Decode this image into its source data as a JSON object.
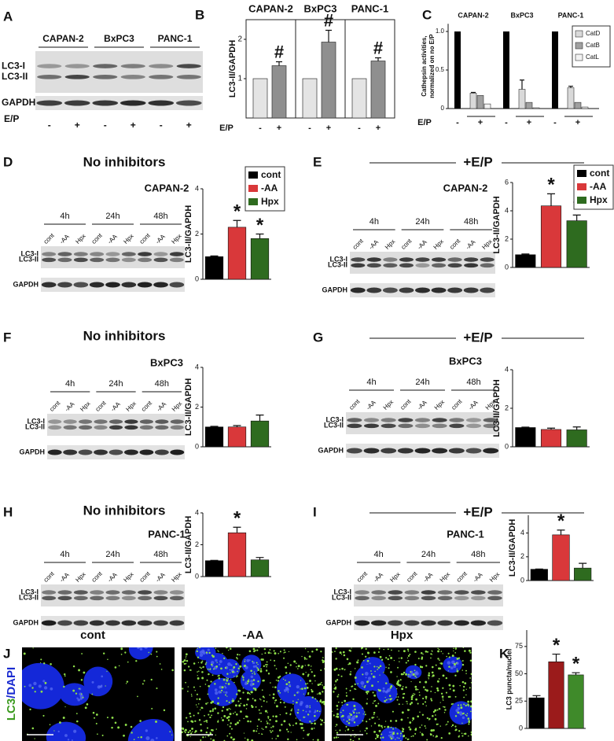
{
  "blots": [
    {
      "panel": "A",
      "groups": [
        "CAPAN-2",
        "BxPC3",
        "PANC-1"
      ],
      "treatment": "E/P",
      "lanes": [
        "-",
        "+",
        "-",
        "+",
        "-",
        "+"
      ],
      "markers": [
        "LC3-I",
        "LC3-II",
        "GAPDH"
      ]
    },
    {
      "panel": "D",
      "condition": "No inhibitors",
      "cell_line": "CAPAN-2",
      "groups": [
        "4h",
        "24h",
        "48h"
      ],
      "lanes": [
        "cont",
        "-AA",
        "Hpx",
        "cont",
        "-AA",
        "Hpx",
        "cont",
        "-AA",
        "Hpx"
      ],
      "markers": [
        "LC3-I",
        "LC3-II",
        "GAPDH"
      ]
    },
    {
      "panel": "E",
      "condition": "+E/P",
      "cell_line": "CAPAN-2",
      "groups": [
        "4h",
        "24h",
        "48h"
      ],
      "lanes": [
        "cont",
        "-AA",
        "Hpx",
        "cont",
        "-AA",
        "Hpx",
        "cont",
        "-AA",
        "Hpx"
      ],
      "markers": [
        "LC3-I",
        "LC3-II",
        "GAPDH"
      ]
    },
    {
      "panel": "F",
      "condition": "No inhibitors",
      "cell_line": "BxPC3",
      "groups": [
        "4h",
        "24h",
        "48h"
      ],
      "lanes": [
        "cont",
        "-AA",
        "Hpx",
        "cont",
        "-AA",
        "Hpx",
        "cont",
        "-AA",
        "Hpx"
      ],
      "markers": [
        "LC3-I",
        "LC3-II",
        "GAPDH"
      ]
    },
    {
      "panel": "G",
      "condition": "+E/P",
      "cell_line": "BxPC3",
      "groups": [
        "4h",
        "24h",
        "48h"
      ],
      "lanes": [
        "cont",
        "-AA",
        "Hpx",
        "cont",
        "-AA",
        "Hpx",
        "cont",
        "-AA",
        "Hpx"
      ],
      "markers": [
        "LC3-I",
        "LC3-II",
        "GAPDH"
      ]
    },
    {
      "panel": "H",
      "condition": "No inhibitors",
      "cell_line": "PANC-1",
      "groups": [
        "4h",
        "24h",
        "48h"
      ],
      "lanes": [
        "cont",
        "-AA",
        "Hpx",
        "cont",
        "-AA",
        "Hpx",
        "cont",
        "-AA",
        "Hpx"
      ],
      "markers": [
        "LC3-I",
        "LC3-II",
        "GAPDH"
      ]
    },
    {
      "panel": "I",
      "condition": "+E/P",
      "cell_line": "PANC-1",
      "groups": [
        "4h",
        "24h",
        "48h"
      ],
      "lanes": [
        "cont",
        "-AA",
        "Hpx",
        "cont",
        "-AA",
        "Hpx",
        "cont",
        "-AA",
        "Hpx"
      ],
      "markers": [
        "LC3-I",
        "LC3-II",
        "GAPDH"
      ]
    }
  ],
  "chart_data": [
    {
      "type": "bar",
      "panel": "B",
      "groups": [
        "CAPAN-2",
        "BxPC3",
        "PANC-1"
      ],
      "categories": [
        "-",
        "+",
        "-",
        "+",
        "-",
        "+"
      ],
      "x_label": "E/P",
      "y_label": "LC3-II/GAPDH",
      "values": [
        1,
        1.33,
        1,
        1.93,
        1,
        1.45
      ],
      "errors": [
        null,
        0.1,
        null,
        0.3,
        null,
        0.08
      ],
      "value_annotations": [
        null,
        "#",
        null,
        "#",
        null,
        "#"
      ],
      "colors": [
        "#e4e4e4",
        "#8f8f8f",
        "#e4e4e4",
        "#8f8f8f",
        "#e4e4e4",
        "#8f8f8f"
      ],
      "ylim": [
        0,
        2.5
      ],
      "yticks": [
        1,
        2
      ]
    },
    {
      "type": "grouped-bar",
      "panel": "C",
      "groups": [
        "CAPAN-2",
        "BxPC3",
        "PANC-1"
      ],
      "categories": [
        "-",
        "+",
        "-",
        "+",
        "-",
        "+"
      ],
      "x_label": "E/P",
      "y_label": [
        "Cathepsin activities,",
        "normalized on no E/P"
      ],
      "reference": {
        "color": "#000000",
        "values": [
          1,
          null,
          1,
          null,
          1,
          null
        ]
      },
      "series": [
        {
          "name": "CatD",
          "color": "#d9d9d9",
          "values": [
            null,
            0.2,
            null,
            0.25,
            null,
            0.27
          ],
          "errors": [
            null,
            0.01,
            null,
            0.12,
            null,
            0.02
          ]
        },
        {
          "name": "CatB",
          "color": "#a0a0a0",
          "values": [
            null,
            0.17,
            null,
            0.08,
            null,
            0.08
          ]
        },
        {
          "name": "CatL",
          "color": "#f2f2f2",
          "values": [
            null,
            0.06,
            null,
            0.01,
            null,
            0.02
          ]
        }
      ],
      "ylim": [
        0,
        1.1
      ],
      "yticks": [
        0,
        0.5,
        {
          "value": 1,
          "label": "1.0"
        }
      ]
    },
    {
      "type": "bar",
      "categories": [
        "cont",
        "-AA",
        "Hpx"
      ],
      "y_label": "LC3-II/GAPDH",
      "values": [
        1,
        2.3,
        1.8
      ],
      "errors": [
        0.03,
        0.3,
        0.2
      ],
      "value_annotations": [
        null,
        "*",
        "*"
      ],
      "colors": [
        "#000000",
        "#d9383a",
        "#2e6b1f"
      ],
      "ylim": [
        0,
        4
      ],
      "yticks": [
        0,
        2,
        4
      ],
      "legend": true
    },
    {
      "type": "bar",
      "categories": [
        "cont",
        "-AA",
        "Hpx"
      ],
      "y_label": "LC3-II/GAPDH",
      "values": [
        0.9,
        4.35,
        3.3
      ],
      "errors": [
        0.05,
        0.85,
        0.4
      ],
      "value_annotations": [
        null,
        "*",
        "*"
      ],
      "colors": [
        "#000000",
        "#d9383a",
        "#2e6b1f"
      ],
      "ylim": [
        0,
        6
      ],
      "yticks": [
        0,
        2,
        4,
        6
      ],
      "legend": true
    },
    {
      "type": "bar",
      "categories": [
        "cont",
        "-AA",
        "Hpx"
      ],
      "y_label": "LC3-II/GAPDH",
      "values": [
        1,
        1,
        1.3
      ],
      "errors": [
        0.03,
        0.07,
        0.3
      ],
      "colors": [
        "#000000",
        "#d9383a",
        "#2e6b1f"
      ],
      "ylim": [
        0,
        4
      ],
      "yticks": [
        0,
        2,
        4
      ],
      "legend": false
    },
    {
      "type": "bar",
      "categories": [
        "cont",
        "-AA",
        "Hpx"
      ],
      "y_label": "LC3-II/GAPDH",
      "values": [
        1,
        0.9,
        0.88
      ],
      "errors": [
        0.02,
        0.07,
        0.15
      ],
      "colors": [
        "#000000",
        "#d9383a",
        "#2e6b1f"
      ],
      "ylim": [
        0,
        4
      ],
      "yticks": [
        0,
        2,
        4
      ],
      "legend": false
    },
    {
      "type": "bar",
      "categories": [
        "cont",
        "-AA",
        "Hpx"
      ],
      "y_label": "LC3-II/GAPDH",
      "values": [
        1,
        2.75,
        1.05
      ],
      "errors": [
        0.02,
        0.35,
        0.15
      ],
      "value_annotations": [
        null,
        "*",
        null
      ],
      "colors": [
        "#000000",
        "#d9383a",
        "#2e6b1f"
      ],
      "ylim": [
        0,
        4
      ],
      "yticks": [
        0,
        2,
        4
      ],
      "legend": false
    },
    {
      "type": "bar",
      "categories": [
        "cont",
        "-AA",
        "Hpx"
      ],
      "y_label": "LC3-II/GAPDH",
      "values": [
        0.95,
        3.85,
        1.05
      ],
      "errors": [
        0.02,
        0.4,
        0.4
      ],
      "value_annotations": [
        null,
        "*",
        null
      ],
      "colors": [
        "#000000",
        "#d9383a",
        "#2e6b1f"
      ],
      "ylim": [
        0,
        5.5
      ],
      "yticks": [
        0,
        2,
        4
      ],
      "legend": false
    },
    {
      "type": "bar",
      "panel": "K",
      "categories": [
        "cont",
        "-AA",
        "Hpx"
      ],
      "y_label": "LC3 puncta/nuclei",
      "values": [
        28,
        61,
        49
      ],
      "errors": [
        2,
        7,
        2
      ],
      "value_annotations": [
        null,
        "*",
        "*"
      ],
      "colors": [
        "#000000",
        "#9b1b1b",
        "#3f8a2a"
      ],
      "ylim": [
        0,
        90
      ],
      "yticks": [
        0,
        25,
        50,
        75
      ],
      "legend": false
    }
  ],
  "micrographs": {
    "panel": "J",
    "titles": [
      "cont",
      "-AA",
      "Hpx"
    ],
    "stain": [
      "LC3",
      "/DAPI"
    ]
  }
}
